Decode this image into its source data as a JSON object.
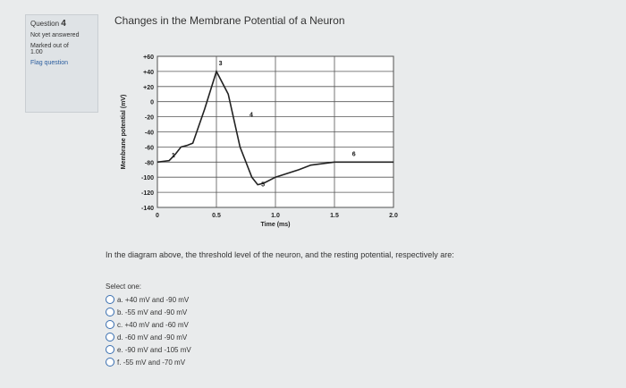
{
  "sidebar": {
    "question_label": "Question",
    "question_number": "4",
    "status": "Not yet answered",
    "marked_label": "Marked out of",
    "marks": "1.00",
    "flag": "Flag question"
  },
  "chart_data": {
    "type": "line",
    "title": "Changes in the Membrane Potential of a Neuron",
    "x_label": "Time (ms)",
    "y_label": "Membrane potential (mV)",
    "x": [
      0,
      0.1,
      0.15,
      0.2,
      0.25,
      0.3,
      0.4,
      0.5,
      0.6,
      0.7,
      0.8,
      0.85,
      0.9,
      1.0,
      1.2,
      1.3,
      1.5,
      2.0
    ],
    "series": [
      {
        "name": "Membrane potential",
        "color": "#222222",
        "values": [
          -80,
          -78,
          -70,
          -60,
          -58,
          -55,
          -10,
          40,
          10,
          -60,
          -100,
          -110,
          -108,
          -100,
          -90,
          -84,
          -80,
          -80
        ]
      }
    ],
    "xlim": [
      0,
      2.0
    ],
    "ylim": [
      -140,
      60
    ],
    "xticks": [
      0,
      0.5,
      {
        "value": 1,
        "label": "1.0"
      },
      1.5,
      {
        "value": 2,
        "label": "2.0"
      }
    ],
    "yticks": [
      -140,
      -120,
      -100,
      -80,
      -60,
      -40,
      -20,
      0,
      {
        "value": 20,
        "label": "+20"
      },
      {
        "value": 40,
        "label": "+40"
      },
      {
        "value": 60,
        "label": "+60"
      }
    ],
    "grid": true,
    "annotations": [
      {
        "text": "1",
        "x": 0.12,
        "y": -74
      },
      {
        "text": "3",
        "x": 0.52,
        "y": 48
      },
      {
        "text": "4",
        "x": 0.78,
        "y": -20
      },
      {
        "text": "5",
        "x": 0.88,
        "y": -112
      },
      {
        "text": "6",
        "x": 1.65,
        "y": -72
      }
    ]
  },
  "question": {
    "text": "In the diagram above, the threshold level of the neuron, and the resting potential, respectively are:",
    "select_label": "Select one:",
    "options": [
      "a. +40 mV and -90 mV",
      "b. -55 mV and -90 mV",
      "c. +40 mV and -60 mV",
      "d. -60 mV and -90 mV",
      "e. -90 mV and -105 mV",
      "f. -55 mV and -70 mV"
    ]
  }
}
